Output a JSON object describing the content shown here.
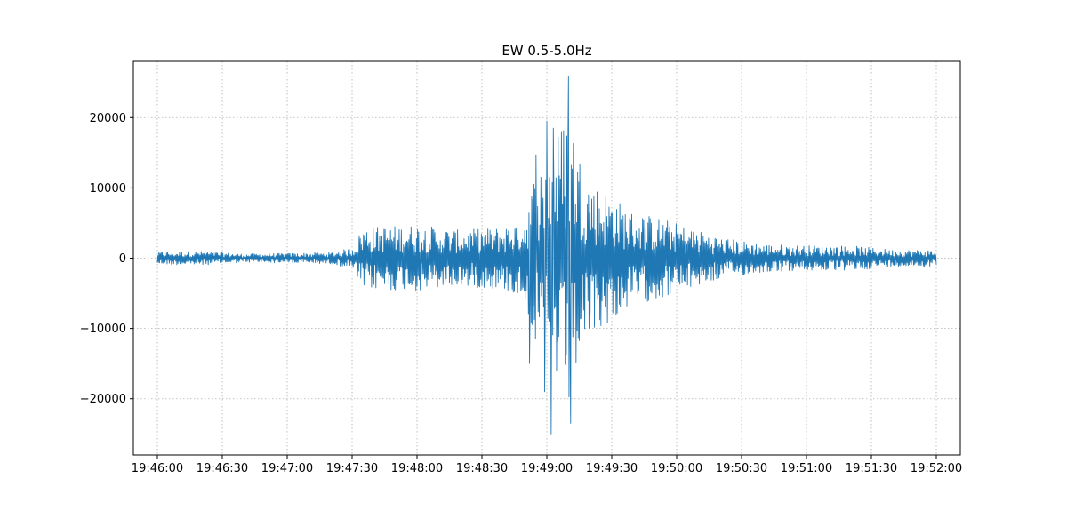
{
  "chart_data": {
    "type": "line",
    "title": "EW 0.5-5.0Hz",
    "xlabel": "",
    "ylabel": "",
    "x_range": [
      "19:46:00",
      "19:52:00"
    ],
    "ylim": [
      -28000,
      28000
    ],
    "grid": true,
    "grid_style": "dotted",
    "series": [
      {
        "color": "#1f77b4",
        "t0": "19:46:00",
        "dt_seconds": 1,
        "envelope_seconds": [
          0,
          20,
          40,
          60,
          80,
          90,
          95,
          100,
          120,
          140,
          160,
          170,
          175,
          180,
          185,
          190,
          195,
          200,
          210,
          220,
          230,
          240,
          250,
          260,
          280,
          300,
          320,
          340,
          360
        ],
        "envelope_amplitude": [
          900,
          1000,
          600,
          700,
          800,
          1500,
          4500,
          4500,
          4800,
          4000,
          4500,
          6000,
          13000,
          15000,
          18000,
          22000,
          15000,
          11000,
          9000,
          6500,
          6000,
          5000,
          4000,
          3000,
          2000,
          1800,
          1800,
          1200,
          1200
        ],
        "peaks": [
          {
            "t": "19:48:52",
            "value": -15000
          },
          {
            "t": "19:48:55",
            "value": 14700
          },
          {
            "t": "19:48:59",
            "value": -19000
          },
          {
            "t": "19:49:00",
            "value": 19500
          },
          {
            "t": "19:49:02",
            "value": -25000
          },
          {
            "t": "19:49:03",
            "value": 18500
          },
          {
            "t": "19:49:10",
            "value": 25800
          },
          {
            "t": "19:49:11",
            "value": -23500
          }
        ]
      }
    ],
    "x_ticks": [
      "19:46:00",
      "19:46:30",
      "19:47:00",
      "19:47:30",
      "19:48:00",
      "19:48:30",
      "19:49:00",
      "19:49:30",
      "19:50:00",
      "19:50:30",
      "19:51:00",
      "19:51:30",
      "19:52:00"
    ],
    "y_ticks": [
      {
        "value": 20000,
        "label": "20000"
      },
      {
        "value": 10000,
        "label": "10000"
      },
      {
        "value": 0,
        "label": "0"
      },
      {
        "value": -10000,
        "label": "−10000"
      },
      {
        "value": -20000,
        "label": "−20000"
      }
    ]
  }
}
